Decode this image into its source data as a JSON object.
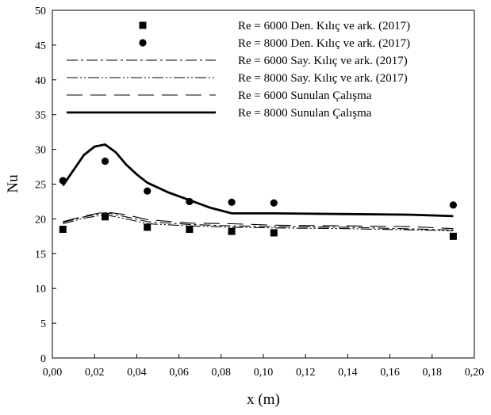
{
  "chart_data": {
    "type": "line",
    "xlabel": "x (m)",
    "ylabel": "Nu",
    "xlim": [
      0,
      0.2
    ],
    "ylim": [
      0,
      50
    ],
    "x_ticks": [
      "0,00",
      "0,02",
      "0,04",
      "0,06",
      "0,08",
      "0,10",
      "0,12",
      "0,14",
      "0,16",
      "0,18",
      "0,20"
    ],
    "y_ticks": [
      "0",
      "5",
      "10",
      "15",
      "20",
      "25",
      "30",
      "35",
      "40",
      "45",
      "50"
    ],
    "grid": false,
    "legend_position": "top-right",
    "series": [
      {
        "name": "Re = 6000 Den. Kılıç ve ark. (2017)",
        "kind": "scatter",
        "marker": "square",
        "x": [
          0.005,
          0.025,
          0.045,
          0.065,
          0.085,
          0.105,
          0.19
        ],
        "y": [
          18.5,
          20.3,
          18.8,
          18.5,
          18.2,
          18.0,
          17.5
        ]
      },
      {
        "name": "Re = 8000 Den. Kılıç ve ark. (2017)",
        "kind": "scatter",
        "marker": "circle",
        "x": [
          0.005,
          0.025,
          0.045,
          0.065,
          0.085,
          0.105,
          0.19
        ],
        "y": [
          25.5,
          28.3,
          24.0,
          22.5,
          22.4,
          22.3,
          22.0
        ]
      },
      {
        "name": "Re = 6000 Say. Kılıç ve ark. (2017)",
        "kind": "line",
        "dash": "dash-dot",
        "x": [
          0.005,
          0.015,
          0.025,
          0.035,
          0.045,
          0.065,
          0.085,
          0.105,
          0.14,
          0.19
        ],
        "y": [
          19.5,
          20.3,
          20.9,
          20.3,
          19.6,
          19.2,
          19.0,
          18.9,
          18.8,
          18.4
        ]
      },
      {
        "name": "Re = 8000 Say. Kılıç ve ark. (2017)",
        "kind": "line",
        "dash": "dash-dot-dot",
        "x": [
          0.005,
          0.015,
          0.025,
          0.035,
          0.045,
          0.065,
          0.085,
          0.105,
          0.14,
          0.19
        ],
        "y": [
          19.3,
          20.1,
          20.6,
          20.0,
          19.3,
          19.0,
          18.8,
          18.7,
          18.6,
          18.3
        ]
      },
      {
        "name": "Re = 6000 Sunulan Çalışma",
        "kind": "line",
        "dash": "long-dash",
        "x": [
          0.005,
          0.015,
          0.025,
          0.035,
          0.045,
          0.065,
          0.085,
          0.105,
          0.14,
          0.17,
          0.19
        ],
        "y": [
          19.6,
          20.4,
          21.0,
          20.6,
          19.9,
          19.4,
          19.3,
          19.1,
          19.0,
          18.9,
          18.6
        ]
      },
      {
        "name": "Re = 8000 Sunulan Çalışma",
        "kind": "line",
        "dash": "solid",
        "x": [
          0.005,
          0.01,
          0.015,
          0.02,
          0.025,
          0.03,
          0.035,
          0.04,
          0.045,
          0.055,
          0.065,
          0.075,
          0.085,
          0.105,
          0.14,
          0.17,
          0.19
        ],
        "y": [
          24.8,
          27.0,
          29.2,
          30.4,
          30.7,
          29.6,
          27.8,
          26.4,
          25.2,
          23.8,
          22.7,
          21.6,
          20.8,
          20.8,
          20.7,
          20.6,
          20.4
        ]
      }
    ]
  }
}
